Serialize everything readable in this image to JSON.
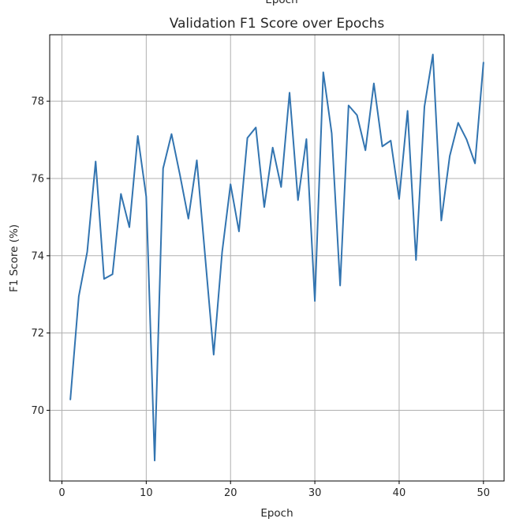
{
  "chart_data": {
    "type": "line",
    "title": "Validation F1 Score over Epochs",
    "top_clipped_label": "Epoch",
    "xlabel": "Epoch",
    "ylabel": "F1 Score (%)",
    "xlim": [
      -1.45,
      52.45
    ],
    "ylim": [
      68.17,
      79.72
    ],
    "xticks": [
      0,
      10,
      20,
      30,
      40,
      50
    ],
    "yticks": [
      70,
      72,
      74,
      76,
      78
    ],
    "grid": true,
    "line_color": "#3274b0",
    "series": [
      {
        "x": [
          1,
          2,
          3,
          4,
          5,
          6,
          7,
          8,
          9,
          10,
          11,
          12,
          13,
          14,
          15,
          16,
          17,
          18,
          19,
          20,
          21,
          22,
          23,
          24,
          25,
          26,
          27,
          28,
          29,
          30,
          31,
          32,
          33,
          34,
          35,
          36,
          37,
          38,
          39,
          40,
          41,
          42,
          43,
          44,
          45,
          46,
          47,
          48,
          49,
          50
        ],
        "values": [
          70.28,
          72.95,
          74.1,
          76.44,
          73.4,
          73.52,
          75.6,
          74.74,
          77.1,
          75.53,
          68.7,
          76.26,
          77.15,
          76.09,
          74.96,
          76.47,
          73.95,
          71.44,
          74.09,
          75.85,
          74.63,
          77.05,
          77.32,
          75.26,
          76.8,
          75.78,
          78.22,
          75.44,
          77.02,
          72.83,
          78.75,
          77.17,
          73.23,
          77.89,
          77.64,
          76.73,
          78.46,
          76.83,
          76.98,
          75.47,
          77.75,
          73.89,
          77.86,
          79.21,
          74.91,
          76.58,
          77.44,
          77.01,
          76.39,
          79.0
        ]
      }
    ]
  }
}
